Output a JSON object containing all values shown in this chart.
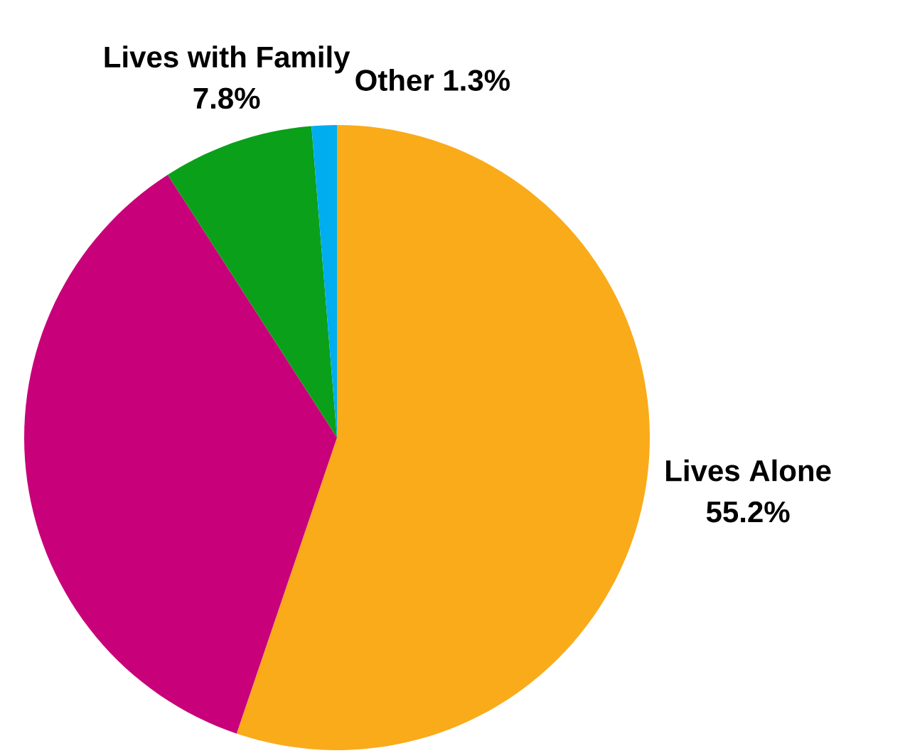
{
  "chart_data": {
    "type": "pie",
    "categories": [
      "Lives Alone",
      null,
      "Lives with Family",
      "Other"
    ],
    "values": [
      55.2,
      35.7,
      7.8,
      1.3
    ],
    "value_labels": [
      "55.2%",
      null,
      "7.8%",
      "1.3%"
    ],
    "colors": [
      "#f9ab1a",
      "#c8007a",
      "#0aa01a",
      "#00aeef"
    ]
  }
}
